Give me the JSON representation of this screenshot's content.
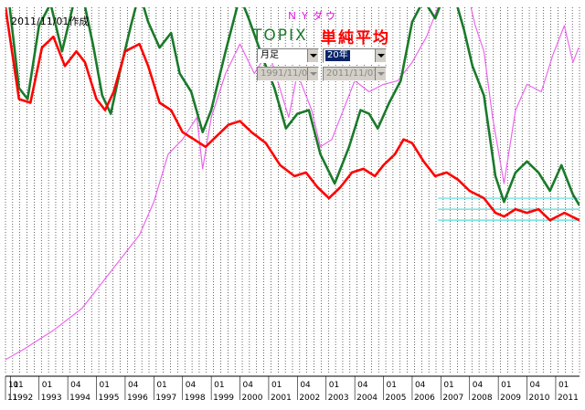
{
  "header": {
    "date_label": "2011/11/01作成",
    "title_nydow": "ＮＹダウ",
    "title_topix": "TOPIX",
    "title_simple": "単純平均"
  },
  "controls": {
    "period_select": "月足",
    "range_select": "20年",
    "start_date": "1991/11/01",
    "end_date": "2011/11/01"
  },
  "colors": {
    "nydow": "#ee66ee",
    "topix": "#1a7a2a",
    "simple_avg": "#ff0000",
    "ref_lines": "#55dddd",
    "grid": "#000000",
    "background": "#ffffff"
  },
  "chart_data": {
    "type": "line",
    "x": [
      1991.83,
      1992,
      1993,
      1994,
      1995,
      1996,
      1997,
      1998,
      1999,
      2000,
      2001,
      2002,
      2003,
      2004,
      2005,
      2006,
      2007,
      2008,
      2009,
      2010,
      2011
    ],
    "x_tick_labels": [
      "11",
      "1992",
      "1993",
      "1994",
      "1995",
      "1996",
      "1997",
      "1998",
      "1999",
      "2000",
      "2001",
      "2002",
      "2003",
      "2004",
      "2005",
      "2006",
      "2007",
      "2008",
      "2009",
      "2010",
      "2011"
    ],
    "x_subtick_labels": [
      "11",
      "01",
      "01",
      "04",
      "01",
      "04",
      "01",
      "04",
      "01",
      "04",
      "01",
      "04",
      "01",
      "04",
      "01",
      "04",
      "01",
      "04",
      "01",
      "04",
      "01"
    ],
    "ylim": [
      0,
      100
    ],
    "xlim": [
      1991.83,
      2011.83
    ],
    "grid": true,
    "series": [
      {
        "name": "ＮＹダウ",
        "color": "#ee66ee",
        "points": [
          [
            1991.83,
            4
          ],
          [
            1992.5,
            7
          ],
          [
            1993.5,
            12
          ],
          [
            1994.5,
            18
          ],
          [
            1995.5,
            28
          ],
          [
            1996.5,
            38
          ],
          [
            1997.0,
            47
          ],
          [
            1997.5,
            60
          ],
          [
            1998.0,
            64
          ],
          [
            1998.5,
            70
          ],
          [
            1998.7,
            56
          ],
          [
            1999.0,
            70
          ],
          [
            1999.5,
            82
          ],
          [
            2000.0,
            90
          ],
          [
            2000.5,
            82
          ],
          [
            2001.0,
            88
          ],
          [
            2001.7,
            70
          ],
          [
            2002.0,
            82
          ],
          [
            2002.5,
            72
          ],
          [
            2002.8,
            62
          ],
          [
            2003.2,
            64
          ],
          [
            2003.7,
            74
          ],
          [
            2004.0,
            80
          ],
          [
            2004.5,
            77
          ],
          [
            2005.0,
            79
          ],
          [
            2005.5,
            80
          ],
          [
            2006.0,
            85
          ],
          [
            2006.5,
            92
          ],
          [
            2007.0,
            102
          ],
          [
            2007.5,
            107
          ],
          [
            2007.8,
            108
          ],
          [
            2008.2,
            95
          ],
          [
            2008.5,
            88
          ],
          [
            2008.8,
            70
          ],
          [
            2009.2,
            52
          ],
          [
            2009.6,
            72
          ],
          [
            2010.0,
            79
          ],
          [
            2010.5,
            77
          ],
          [
            2010.9,
            87
          ],
          [
            2011.3,
            95
          ],
          [
            2011.6,
            85
          ],
          [
            2011.8,
            89
          ]
        ]
      },
      {
        "name": "TOPIX",
        "color": "#1a7a2a",
        "points": [
          [
            1991.83,
            110
          ],
          [
            1992.3,
            78
          ],
          [
            1992.6,
            75
          ],
          [
            1993.0,
            95
          ],
          [
            1993.4,
            101
          ],
          [
            1993.8,
            88
          ],
          [
            1994.2,
            101
          ],
          [
            1994.5,
            104
          ],
          [
            1994.9,
            89
          ],
          [
            1995.2,
            76
          ],
          [
            1995.5,
            71
          ],
          [
            1995.8,
            82
          ],
          [
            1996.2,
            95
          ],
          [
            1996.5,
            104
          ],
          [
            1996.8,
            96
          ],
          [
            1997.2,
            89
          ],
          [
            1997.6,
            93
          ],
          [
            1997.9,
            82
          ],
          [
            1998.3,
            77
          ],
          [
            1998.7,
            66
          ],
          [
            1999.0,
            72
          ],
          [
            1999.5,
            88
          ],
          [
            2000.0,
            103
          ],
          [
            2000.3,
            97
          ],
          [
            2000.8,
            86
          ],
          [
            2001.2,
            78
          ],
          [
            2001.6,
            67
          ],
          [
            2002.0,
            71
          ],
          [
            2002.4,
            72
          ],
          [
            2002.8,
            60
          ],
          [
            2003.3,
            52
          ],
          [
            2003.8,
            62
          ],
          [
            2004.2,
            72
          ],
          [
            2004.5,
            71
          ],
          [
            2004.8,
            67
          ],
          [
            2005.2,
            74
          ],
          [
            2005.6,
            80
          ],
          [
            2006.0,
            96
          ],
          [
            2006.4,
            102
          ],
          [
            2006.8,
            97
          ],
          [
            2007.1,
            103
          ],
          [
            2007.4,
            105
          ],
          [
            2007.8,
            94
          ],
          [
            2008.1,
            84
          ],
          [
            2008.5,
            76
          ],
          [
            2008.9,
            54
          ],
          [
            2009.2,
            47
          ],
          [
            2009.6,
            55
          ],
          [
            2010.0,
            58
          ],
          [
            2010.4,
            55
          ],
          [
            2010.8,
            50
          ],
          [
            2011.2,
            57
          ],
          [
            2011.6,
            49
          ],
          [
            2011.83,
            46
          ]
        ]
      },
      {
        "name": "単純平均",
        "color": "#ff0000",
        "points": [
          [
            1991.83,
            100
          ],
          [
            1992.3,
            75
          ],
          [
            1992.7,
            74
          ],
          [
            1993.1,
            89
          ],
          [
            1993.5,
            92
          ],
          [
            1993.9,
            84
          ],
          [
            1994.3,
            88
          ],
          [
            1994.6,
            85
          ],
          [
            1995.0,
            75
          ],
          [
            1995.3,
            72
          ],
          [
            1995.6,
            77
          ],
          [
            1996.0,
            88
          ],
          [
            1996.5,
            90
          ],
          [
            1996.8,
            84
          ],
          [
            1997.2,
            74
          ],
          [
            1997.6,
            72
          ],
          [
            1998.0,
            66
          ],
          [
            1998.4,
            64
          ],
          [
            1998.8,
            62
          ],
          [
            1999.2,
            65
          ],
          [
            1999.6,
            68
          ],
          [
            2000.0,
            69
          ],
          [
            2000.4,
            66
          ],
          [
            2000.9,
            63
          ],
          [
            2001.4,
            57
          ],
          [
            2001.9,
            54
          ],
          [
            2002.3,
            55
          ],
          [
            2002.7,
            51
          ],
          [
            2003.1,
            48
          ],
          [
            2003.5,
            51
          ],
          [
            2003.9,
            55
          ],
          [
            2004.3,
            56
          ],
          [
            2004.7,
            54
          ],
          [
            2005.0,
            57
          ],
          [
            2005.4,
            60
          ],
          [
            2005.7,
            64
          ],
          [
            2006.0,
            63
          ],
          [
            2006.4,
            58
          ],
          [
            2006.8,
            54
          ],
          [
            2007.2,
            55
          ],
          [
            2007.6,
            53
          ],
          [
            2008.0,
            50
          ],
          [
            2008.5,
            48
          ],
          [
            2008.9,
            44
          ],
          [
            2009.2,
            43
          ],
          [
            2009.6,
            45
          ],
          [
            2010.0,
            44
          ],
          [
            2010.4,
            45
          ],
          [
            2010.8,
            42
          ],
          [
            2011.3,
            44
          ],
          [
            2011.83,
            42
          ]
        ]
      }
    ],
    "reference_lines": [
      48,
      45,
      42
    ]
  }
}
